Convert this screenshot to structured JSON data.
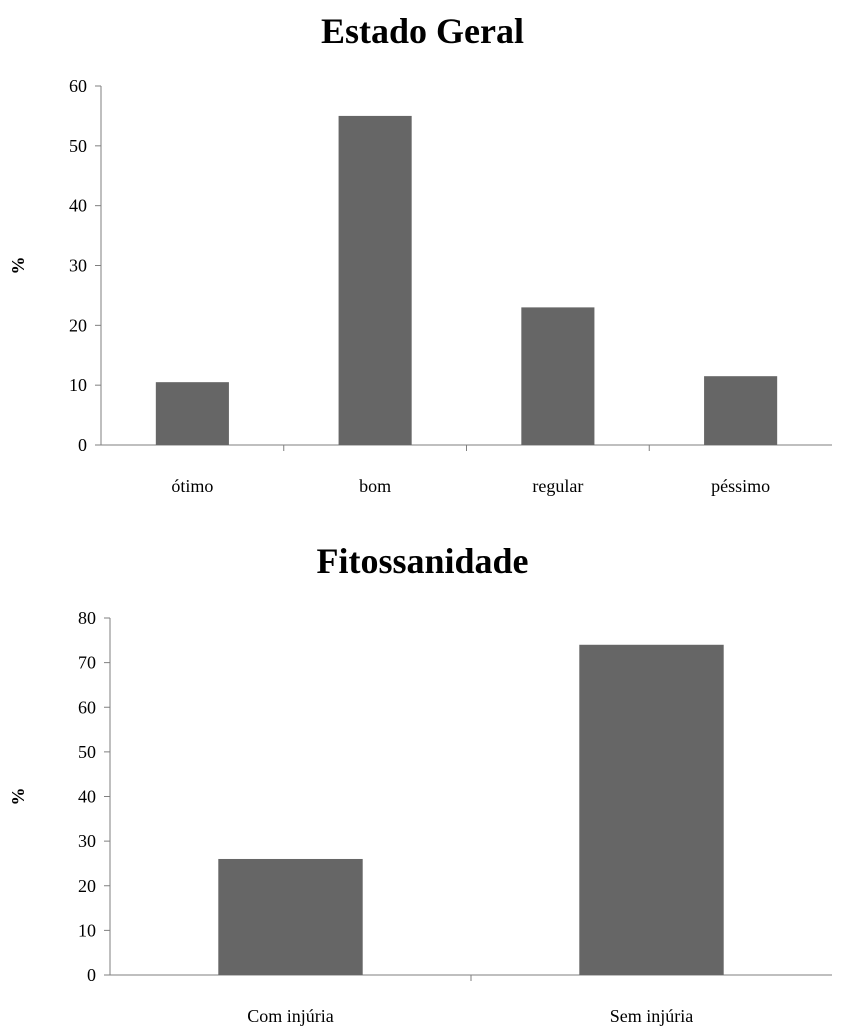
{
  "chart_data": [
    {
      "type": "bar",
      "title": "Estado Geral",
      "ylabel": "%",
      "xlabel": "",
      "categories": [
        "ótimo",
        "bom",
        "regular",
        "péssimo"
      ],
      "values": [
        10.5,
        55,
        23,
        11.5
      ],
      "ylim": [
        0,
        60
      ],
      "yticks": [
        0,
        10,
        20,
        30,
        40,
        50,
        60
      ],
      "color": "#666666",
      "grid": false,
      "legend": "none"
    },
    {
      "type": "bar",
      "title": "Fitossanidade",
      "ylabel": "%",
      "xlabel": "",
      "categories": [
        "Com injúria",
        "Sem injúria"
      ],
      "values": [
        26,
        74
      ],
      "ylim": [
        0,
        80
      ],
      "yticks": [
        0,
        10,
        20,
        30,
        40,
        50,
        60,
        70,
        80
      ],
      "color": "#666666",
      "grid": false,
      "legend": "none"
    }
  ]
}
